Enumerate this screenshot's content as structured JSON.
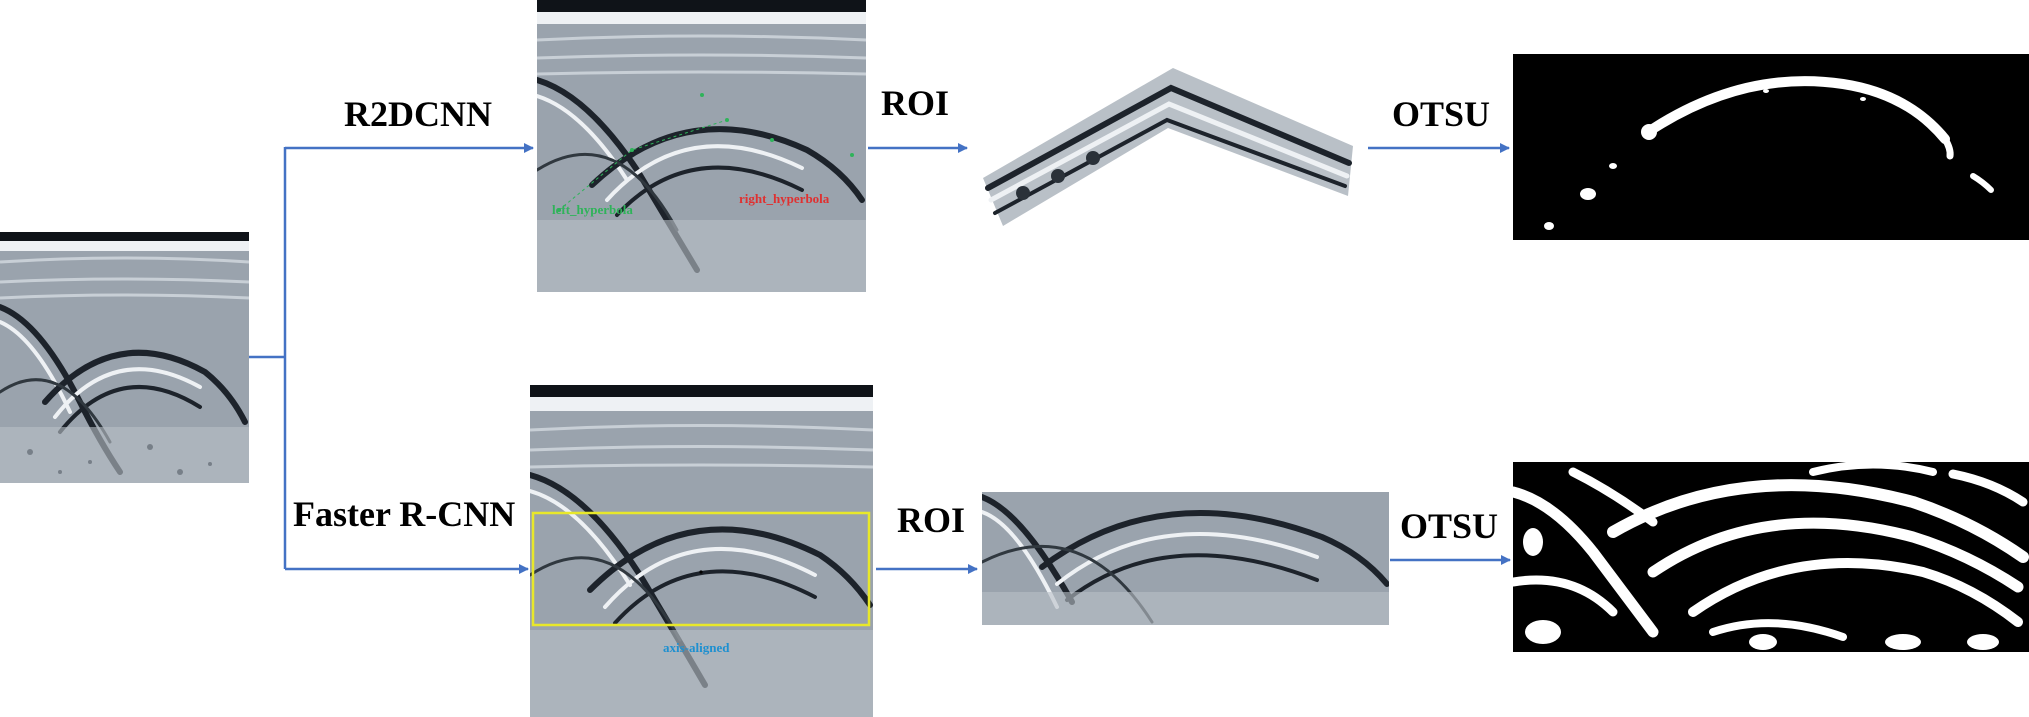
{
  "labels": {
    "top_method": "R2DCNN",
    "bottom_method": "Faster R-CNN",
    "roi_top": "ROI",
    "roi_bottom": "ROI",
    "otsu_top": "OTSU",
    "otsu_bottom": "OTSU"
  },
  "annotations": {
    "left_hyperbola": "left_hyperbola",
    "right_hyperbola": "right_hyperbola",
    "axis_aligned": "axis-aligned"
  },
  "colors": {
    "arrow": "#4472c4",
    "bbox": "#e8e82a",
    "left_annotation": "#2fb35a",
    "right_annotation": "#e03030",
    "axis_annotation": "#1e90d0",
    "radar_base": "#9aa3ad",
    "radar_dark": "#1d232b",
    "radar_light": "#eef1f4"
  }
}
